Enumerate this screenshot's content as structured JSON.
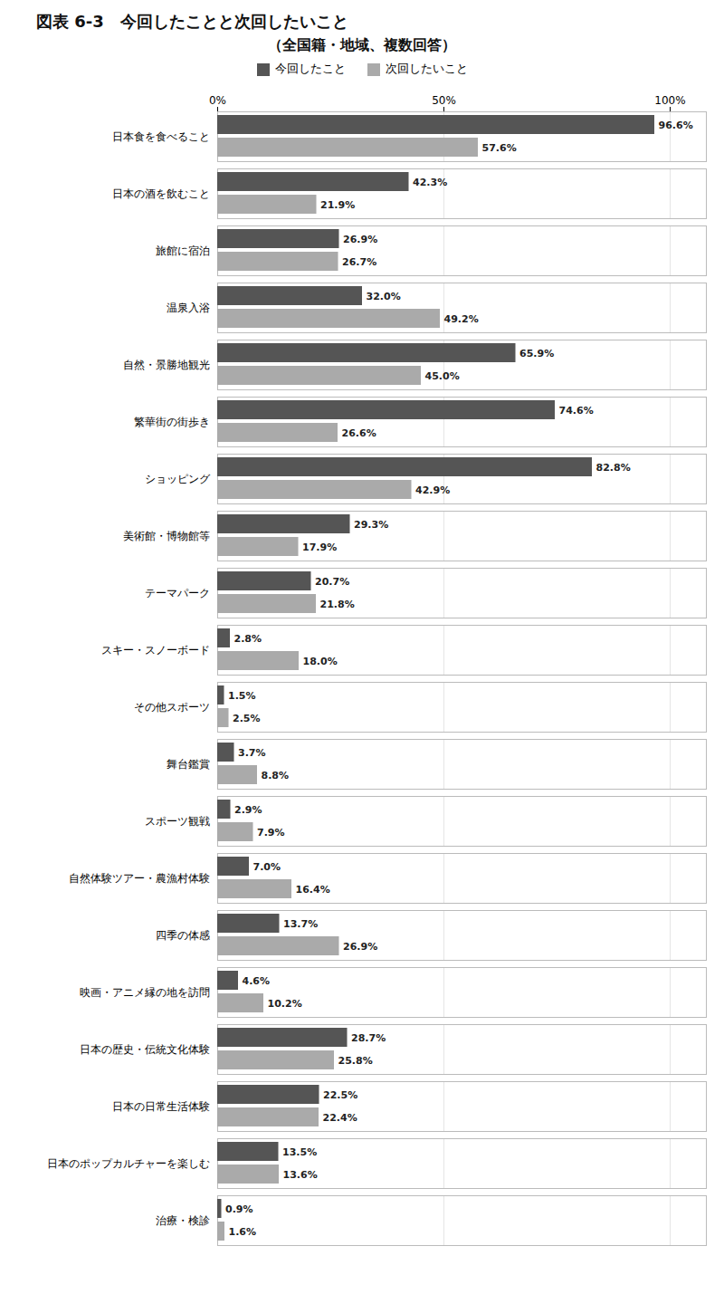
{
  "chart_data": {
    "type": "bar",
    "orientation": "horizontal",
    "title": "図表 6-3　今回したことと次回したいこと",
    "subtitle": "（全国籍・地域、複数回答）",
    "categories": [
      "日本食を食べること",
      "日本の酒を飲むこと",
      "旅館に宿泊",
      "温泉入浴",
      "自然・景勝地観光",
      "繁華街の街歩き",
      "ショッピング",
      "美術館・博物館等",
      "テーマパーク",
      "スキー・スノーボード",
      "その他スポーツ",
      "舞台鑑賞",
      "スポーツ観戦",
      "自然体験ツアー・農漁村体験",
      "四季の体感",
      "映画・アニメ縁の地を訪問",
      "日本の歴史・伝統文化体験",
      "日本の日常生活体験",
      "日本のポップカルチャーを楽しむ",
      "治療・検診"
    ],
    "series": [
      {
        "name": "今回したこと",
        "color": "#555555",
        "values": [
          96.6,
          42.3,
          26.9,
          32.0,
          65.9,
          74.6,
          82.8,
          29.3,
          20.7,
          2.8,
          1.5,
          3.7,
          2.9,
          7.0,
          13.7,
          4.6,
          28.7,
          22.5,
          13.5,
          0.9
        ],
        "value_labels": [
          "96.6%",
          "42.3%",
          "26.9%",
          "32.0%",
          "65.9%",
          "74.6%",
          "82.8%",
          "29.3%",
          "20.7%",
          "2.8%",
          "1.5%",
          "3.7%",
          "2.9%",
          "7.0%",
          "13.7%",
          "4.6%",
          "28.7%",
          "22.5%",
          "13.5%",
          "0.9%"
        ]
      },
      {
        "name": "次回したいこと",
        "color": "#aaaaaa",
        "values": [
          57.6,
          21.9,
          26.7,
          49.2,
          45.0,
          26.6,
          42.9,
          17.9,
          21.8,
          18.0,
          2.5,
          8.8,
          7.9,
          16.4,
          26.9,
          10.2,
          25.8,
          22.4,
          13.6,
          1.6
        ],
        "value_labels": [
          "57.6%",
          "21.9%",
          "26.7%",
          "49.2%",
          "45.0%",
          "26.6%",
          "42.9%",
          "17.9%",
          "21.8%",
          "18.0%",
          "2.5%",
          "8.8%",
          "7.9%",
          "16.4%",
          "26.9%",
          "10.2%",
          "25.8%",
          "22.4%",
          "13.6%",
          "1.6%"
        ]
      }
    ],
    "xlim": [
      0,
      108
    ],
    "xticks": [
      {
        "value": 0,
        "label": "0%"
      },
      {
        "value": 50,
        "label": "50%"
      },
      {
        "value": 100,
        "label": "100%"
      }
    ],
    "grid": true,
    "legend": "top",
    "data_labels": true
  }
}
